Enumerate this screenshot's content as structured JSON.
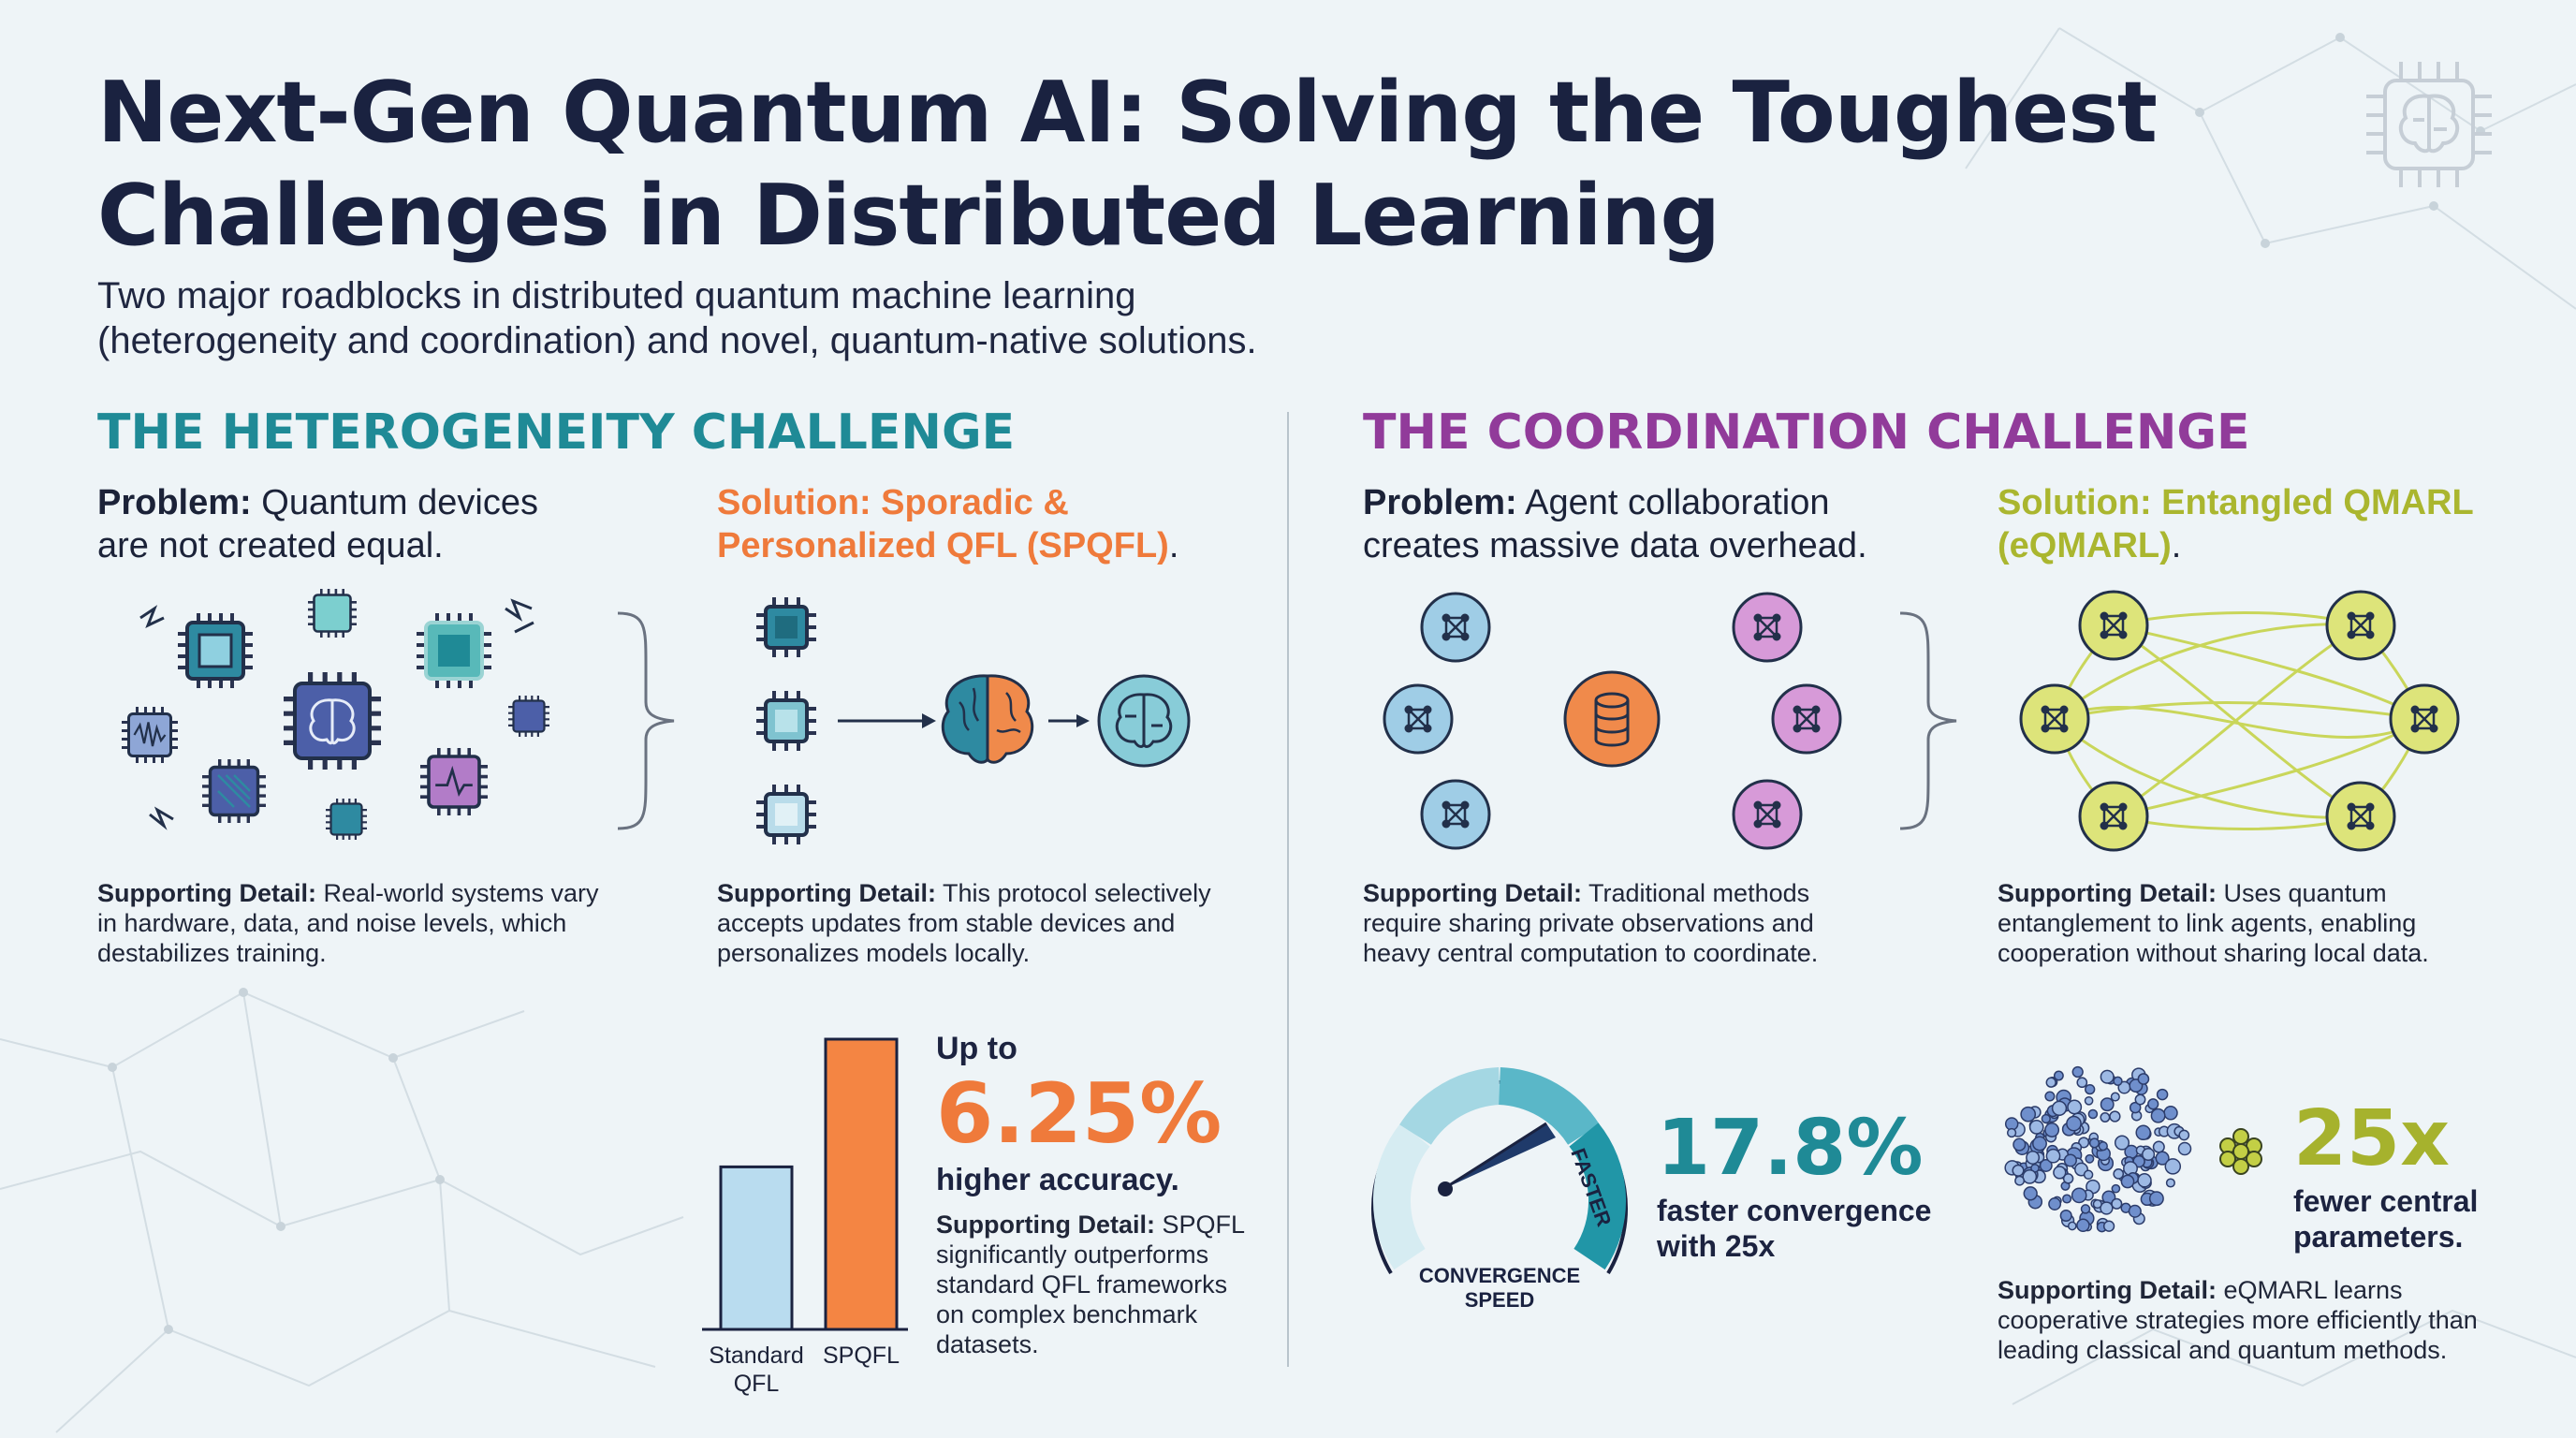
{
  "header": {
    "title_line1": "Next-Gen Quantum AI: Solving the Toughest",
    "title_line2": "Challenges in Distributed Learning",
    "subtitle_line1": "Two major roadblocks in distributed quantum machine learning",
    "subtitle_line2": "(heterogeneity and coordination) and novel, quantum-native solutions."
  },
  "heterogeneity": {
    "title": "THE HETEROGENEITY CHALLENGE",
    "problem_label": "Problem:",
    "problem_text_1": " Quantum devices",
    "problem_text_2": "are not created equal.",
    "problem_detail_label": "Supporting Detail:",
    "problem_detail_1": " Real-world systems vary",
    "problem_detail_2": "in hardware, data, and noise levels, which",
    "problem_detail_3": "destabilizes training.",
    "solution_line1": "Solution: Sporadic &",
    "solution_line2": "Personalized QFL (SPQFL)",
    "solution_period": ".",
    "solution_detail_label": "Supporting Detail:",
    "solution_detail_1": " This protocol selectively",
    "solution_detail_2": "accepts updates from stable devices and",
    "solution_detail_3": "personalizes models locally.",
    "stat_prefix": "Up to",
    "stat_value": "6.25%",
    "stat_suffix": "higher accuracy.",
    "stat_detail_label": "Supporting Detail:",
    "stat_detail_1": " SPQFL",
    "stat_detail_2": "significantly outperforms",
    "stat_detail_3": "standard QFL frameworks",
    "stat_detail_4": "on complex benchmark",
    "stat_detail_5": "datasets."
  },
  "coordination": {
    "title": "THE COORDINATION CHALLENGE",
    "problem_label": "Problem:",
    "problem_text_1": " Agent collaboration",
    "problem_text_2": "creates massive data overhead.",
    "problem_detail_label": "Supporting Detail:",
    "problem_detail_1": " Traditional methods",
    "problem_detail_2": "require sharing private observations and",
    "problem_detail_3": "heavy central computation to coordinate.",
    "solution_line1": "Solution: Entangled QMARL",
    "solution_line2": "(eQMARL)",
    "solution_period": ".",
    "solution_detail_label": "Supporting Detail:",
    "solution_detail_1": " Uses quantum",
    "solution_detail_2": "entanglement to link agents, enabling",
    "solution_detail_3": "cooperation without sharing local data.",
    "gauge_label_1": "CONVERGENCE",
    "gauge_label_2": "SPEED",
    "gauge_arc_label": "FASTER",
    "stat1_value": "17.8%",
    "stat1_line1": "faster convergence",
    "stat1_line2": "with 25x",
    "stat2_value": "25x",
    "stat2_line1": "fewer central",
    "stat2_line2": "parameters.",
    "stat2_detail_label": "Supporting Detail:",
    "stat2_detail_1": " eQMARL learns",
    "stat2_detail_2": "cooperative strategies more efficiently than",
    "stat2_detail_3": "leading classical and quantum methods."
  },
  "chart_data": {
    "type": "bar",
    "categories": [
      "Standard QFL",
      "SPQFL"
    ],
    "category_lines": [
      [
        "Standard",
        "QFL"
      ],
      [
        "SPQFL"
      ]
    ],
    "values": [
      0.56,
      1.0
    ],
    "ylim": [
      0,
      1
    ],
    "colors": [
      "#b9dcef",
      "#f48543"
    ]
  },
  "colors": {
    "teal": "#1f8a96",
    "purple": "#913b9a",
    "orange": "#ef7a3b",
    "olive": "#aab62f",
    "navy": "#1a2240"
  },
  "icons": [
    "brain-chip-icon",
    "chip-icon",
    "brain-icon",
    "node-network-icon",
    "database-icon",
    "gauge-icon"
  ]
}
